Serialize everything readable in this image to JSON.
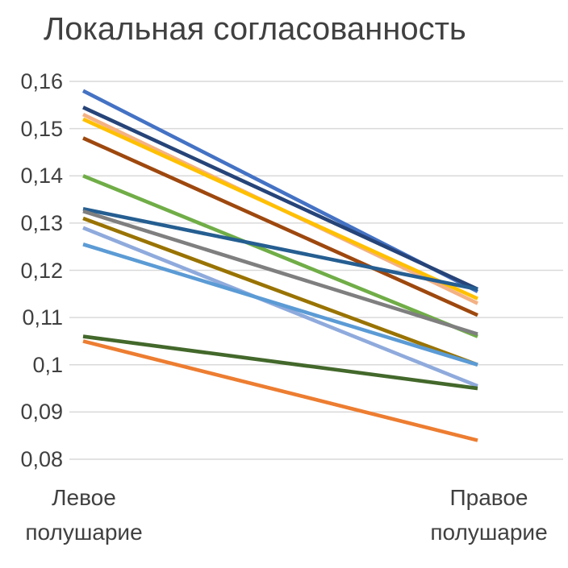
{
  "chart_data": {
    "type": "line",
    "title": "Локальная согласованность",
    "categories": [
      "Левое полушарие",
      "Правое полушарие"
    ],
    "y_ticks": [
      "0,16",
      "0,15",
      "0,14",
      "0,13",
      "0,12",
      "0,11",
      "0,1",
      "0,09",
      "0,08"
    ],
    "y_tick_values": [
      0.16,
      0.15,
      0.14,
      0.13,
      0.12,
      0.11,
      0.1,
      0.09,
      0.08
    ],
    "ylim": [
      0.08,
      0.16
    ],
    "xlabel": "",
    "ylabel": "",
    "grid": true,
    "legend": "none",
    "gridline_color": "#D9D9D9",
    "text_color": "#404040",
    "series": [
      {
        "color": "#4472C4",
        "values": [
          0.158,
          0.1155
        ]
      },
      {
        "color": "#264478",
        "values": [
          0.1545,
          0.116
        ]
      },
      {
        "color": "#F4B183",
        "values": [
          0.153,
          0.113
        ]
      },
      {
        "color": "#FFC000",
        "values": [
          0.152,
          0.114
        ]
      },
      {
        "color": "#9E480E",
        "values": [
          0.148,
          0.1105
        ]
      },
      {
        "color": "#70AD47",
        "values": [
          0.14,
          0.106
        ]
      },
      {
        "color": "#255E91",
        "values": [
          0.133,
          0.116
        ]
      },
      {
        "color": "#7F7F7F",
        "values": [
          0.1325,
          0.1065
        ]
      },
      {
        "color": "#997300",
        "values": [
          0.131,
          0.1
        ]
      },
      {
        "color": "#8FAADC",
        "values": [
          0.129,
          0.0955
        ]
      },
      {
        "color": "#5B9BD5",
        "values": [
          0.1255,
          0.1
        ]
      },
      {
        "color": "#43682B",
        "values": [
          0.106,
          0.095
        ]
      },
      {
        "color": "#ED7D31",
        "values": [
          0.105,
          0.084
        ]
      }
    ]
  }
}
